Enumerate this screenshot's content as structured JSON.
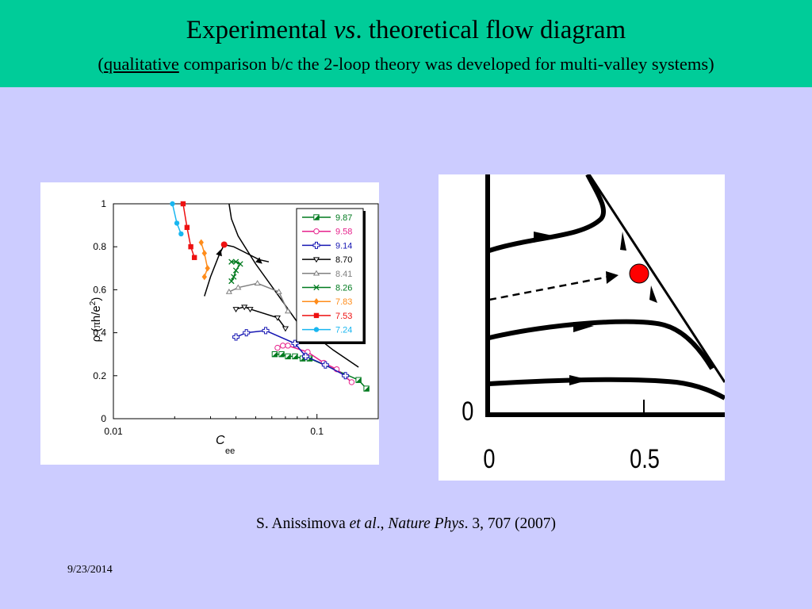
{
  "header": {
    "title_main": "Experimental ",
    "title_vs": "vs",
    "title_rest": ". theoretical flow diagram",
    "subtitle_open": "(",
    "subtitle_underlined": "qualitative",
    "subtitle_rest": " comparison b/c the 2-loop theory was developed for multi-valley systems)"
  },
  "colors": {
    "header_bg": "#00cc99",
    "page_bg": "#ccccff"
  },
  "chart_data": [
    {
      "type": "line",
      "xscale": "log",
      "ylabel": "ρ (πh/e²)",
      "ylabel_parts": {
        "rho": "ρ (",
        "pi": "π",
        "h": "h/e",
        "sup": "2",
        "close": ")"
      },
      "xlabel": "Cee",
      "xlabel_parts": {
        "main": "C",
        "sub": "ee"
      },
      "xlim": [
        0.01,
        0.2
      ],
      "ylim": [
        0,
        1
      ],
      "xticks": [
        0.01,
        0.1
      ],
      "xtick_labels": [
        "0.01",
        "0.1"
      ],
      "yticks": [
        0,
        0.2,
        0.4,
        0.6,
        0.8,
        1
      ],
      "ytick_labels": [
        "0",
        "0.2",
        "0.4",
        "0.6",
        "0.8",
        "1"
      ],
      "legend_position": "top-right",
      "series": [
        {
          "name": "9.87",
          "color": "#007a1f",
          "marker": "square-half",
          "x": [
            0.062,
            0.067,
            0.072,
            0.078,
            0.085,
            0.092,
            0.16,
            0.175
          ],
          "y": [
            0.3,
            0.3,
            0.29,
            0.29,
            0.28,
            0.28,
            0.18,
            0.14
          ]
        },
        {
          "name": "9.58",
          "color": "#e6228c",
          "marker": "circle-open",
          "x": [
            0.064,
            0.068,
            0.072,
            0.09,
            0.108,
            0.125,
            0.148
          ],
          "y": [
            0.33,
            0.34,
            0.34,
            0.31,
            0.26,
            0.23,
            0.17
          ]
        },
        {
          "name": "9.14",
          "color": "#1717b3",
          "marker": "plus-open",
          "x": [
            0.04,
            0.045,
            0.056,
            0.078,
            0.088,
            0.11,
            0.138
          ],
          "y": [
            0.38,
            0.4,
            0.41,
            0.35,
            0.29,
            0.25,
            0.2
          ]
        },
        {
          "name": "8.70",
          "color": "#000000",
          "marker": "triangle-down-open",
          "x": [
            0.04,
            0.044,
            0.047,
            0.064,
            0.07
          ],
          "y": [
            0.51,
            0.52,
            0.51,
            0.47,
            0.42
          ]
        },
        {
          "name": "8.41",
          "color": "#808080",
          "marker": "triangle-up-open",
          "x": [
            0.037,
            0.041,
            0.051,
            0.065,
            0.072
          ],
          "y": [
            0.59,
            0.61,
            0.63,
            0.59,
            0.5
          ]
        },
        {
          "name": "8.26",
          "color": "#007a1f",
          "marker": "x",
          "x": [
            0.038,
            0.04,
            0.042,
            0.04,
            0.039,
            0.038
          ],
          "y": [
            0.73,
            0.73,
            0.72,
            0.69,
            0.66,
            0.64
          ]
        },
        {
          "name": "7.83",
          "color": "#ff8c1a",
          "marker": "diamond",
          "x": [
            0.027,
            0.028,
            0.029,
            0.028
          ],
          "y": [
            0.82,
            0.77,
            0.7,
            0.66
          ]
        },
        {
          "name": "7.53",
          "color": "#ee1111",
          "marker": "square",
          "x": [
            0.022,
            0.023,
            0.024,
            0.025
          ],
          "y": [
            1.0,
            0.89,
            0.8,
            0.75
          ]
        },
        {
          "name": "7.24",
          "color": "#19b6f0",
          "marker": "circle",
          "x": [
            0.0195,
            0.0205,
            0.0215
          ],
          "y": [
            1.0,
            0.91,
            0.86
          ]
        }
      ],
      "fixed_point": {
        "x": 0.035,
        "y": 0.81,
        "color": "#ee1111"
      },
      "flow_lines": [
        {
          "x": [
            0.037,
            0.038,
            0.041,
            0.05,
            0.065,
            0.08,
            0.12,
            0.16
          ],
          "y": [
            1.0,
            0.93,
            0.85,
            0.72,
            0.57,
            0.45,
            0.32,
            0.24
          ]
        },
        {
          "x": [
            0.028,
            0.03,
            0.033,
            0.035
          ],
          "y": [
            0.57,
            0.66,
            0.76,
            0.81
          ]
        },
        {
          "x": [
            0.035,
            0.039,
            0.043,
            0.052,
            0.058
          ],
          "y": [
            0.81,
            0.8,
            0.78,
            0.74,
            0.73
          ]
        }
      ]
    },
    {
      "type": "diagram",
      "xtick_labels": [
        "0",
        "0.5"
      ],
      "ytick_labels": [
        "0"
      ]
    }
  ],
  "citation": {
    "author": "S. Anissimova ",
    "etal": "et al",
    "comma": "., ",
    "journal": "Nature Phys",
    "rest": ". 3, 707 (2007)"
  },
  "footer": {
    "date": "9/23/2014"
  }
}
